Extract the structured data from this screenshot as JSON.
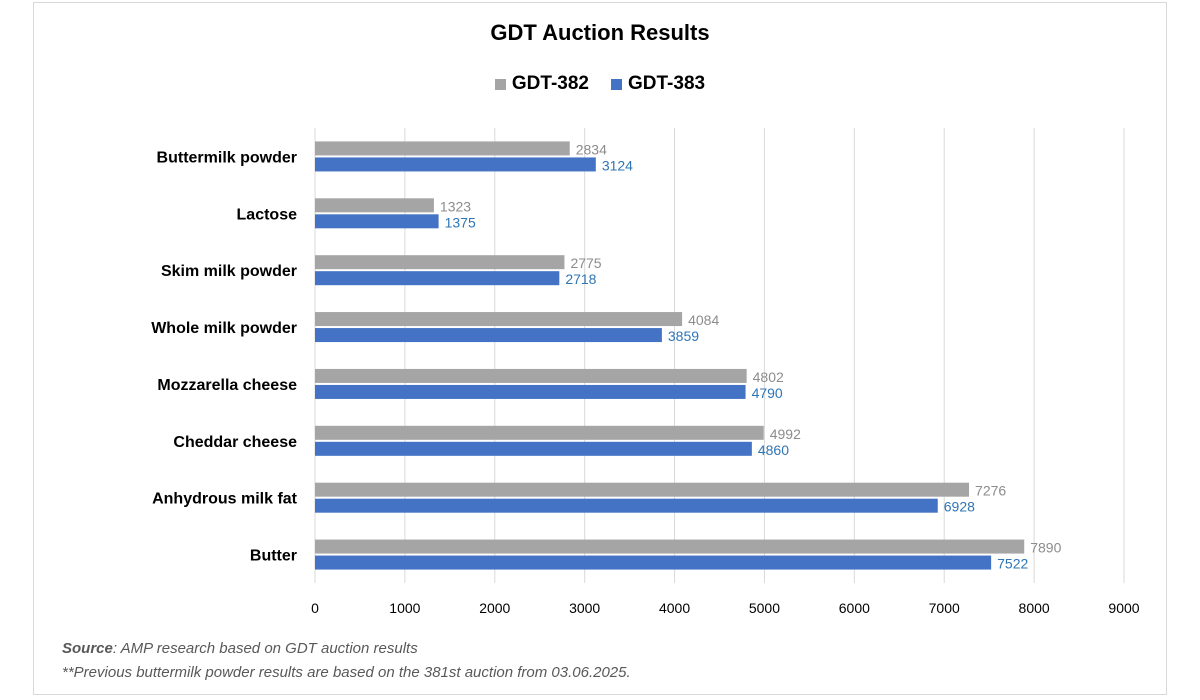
{
  "chart_data": {
    "type": "bar",
    "orientation": "horizontal",
    "title": "GDT Auction Results",
    "categories": [
      "Buttermilk powder",
      "Lactose",
      "Skim milk powder",
      "Whole milk powder",
      "Mozzarella cheese",
      "Cheddar cheese",
      "Anhydrous milk fat",
      "Butter"
    ],
    "series": [
      {
        "name": "GDT-382",
        "color": "#a5a5a5",
        "label_color": "#8c8c8c",
        "values": [
          2834,
          1323,
          2775,
          4084,
          4802,
          4992,
          7276,
          7890
        ]
      },
      {
        "name": "GDT-383",
        "color": "#4472c4",
        "label_color": "#2e75b6",
        "values": [
          3124,
          1375,
          2718,
          3859,
          4790,
          4860,
          6928,
          7522
        ]
      }
    ],
    "xlim": [
      0,
      9000
    ],
    "xticks": [
      0,
      1000,
      2000,
      3000,
      4000,
      5000,
      6000,
      7000,
      8000,
      9000
    ],
    "grid": "vertical",
    "legend_position": "top"
  },
  "notes": {
    "source_label": "Source",
    "source_text": ": AMP research based on GDT auction results",
    "previous": "**Previous buttermilk powder results are based on the 381st auction from 03.06.2025."
  }
}
